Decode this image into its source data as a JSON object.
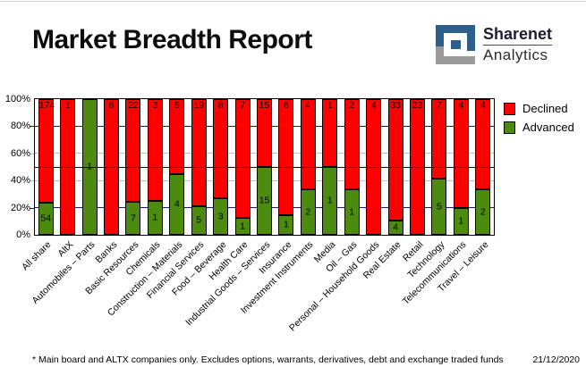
{
  "header": {
    "title": "Market Breadth Report",
    "logo": {
      "line1": "Sharenet",
      "line2": "Analytics",
      "blue": "#2e5f8a",
      "gray": "#9b9b9b"
    }
  },
  "legend": [
    {
      "label": "Declined",
      "color": "#ff0000"
    },
    {
      "label": "Advanced",
      "color": "#4d8b10"
    }
  ],
  "chart_data": {
    "type": "bar",
    "stacked": true,
    "stack_mode": "percent",
    "title": "Market Breadth Report",
    "categories": [
      "All share",
      "AltX",
      "Automobiles – Parts",
      "Banks",
      "Basic Resources",
      "Chemicals",
      "Construction – Materials",
      "Financial Services",
      "Food – Beverage",
      "Health Care",
      "Industrial Goods – Services",
      "Insurance",
      "Investment Instruments",
      "Media",
      "Oil – Gas",
      "Personal – Household Goods",
      "Real Estate",
      "Retail",
      "Technology",
      "Telecommunications",
      "Travel – Leisure"
    ],
    "series": [
      {
        "name": "Declined",
        "color": "#ff0000",
        "values": [
          174,
          1,
          0,
          6,
          22,
          3,
          5,
          19,
          8,
          7,
          15,
          6,
          4,
          1,
          2,
          4,
          33,
          23,
          7,
          4,
          4
        ]
      },
      {
        "name": "Advanced",
        "color": "#4d8b10",
        "values": [
          54,
          0,
          1,
          0,
          7,
          1,
          4,
          5,
          3,
          1,
          15,
          1,
          2,
          1,
          1,
          0,
          4,
          0,
          5,
          1,
          2
        ]
      }
    ],
    "ylim": [
      0,
      100
    ],
    "yticks": [
      {
        "value": 100,
        "label": "100%"
      },
      {
        "value": 80,
        "label": "80%"
      },
      {
        "value": 60,
        "label": "60%"
      },
      {
        "value": 40,
        "label": "40%"
      },
      {
        "value": 20,
        "label": "20%"
      },
      {
        "value": 0,
        "label": "0%"
      }
    ],
    "gridlines": [
      {
        "value": 80,
        "color": "#16167c"
      },
      {
        "value": 60,
        "color": "#c0c0c0"
      },
      {
        "value": 40,
        "color": "#c0c0c0"
      },
      {
        "value": 20,
        "color": "#16167c"
      }
    ],
    "reference_line": {
      "value": 50,
      "color": "#000000"
    },
    "legend_position": "top-right",
    "grid": true
  },
  "footer": {
    "note": "* Main board and ALTX companies only. Excludes options, warrants, derivatives, debt and exchange traded funds",
    "date": "21/12/2020"
  }
}
